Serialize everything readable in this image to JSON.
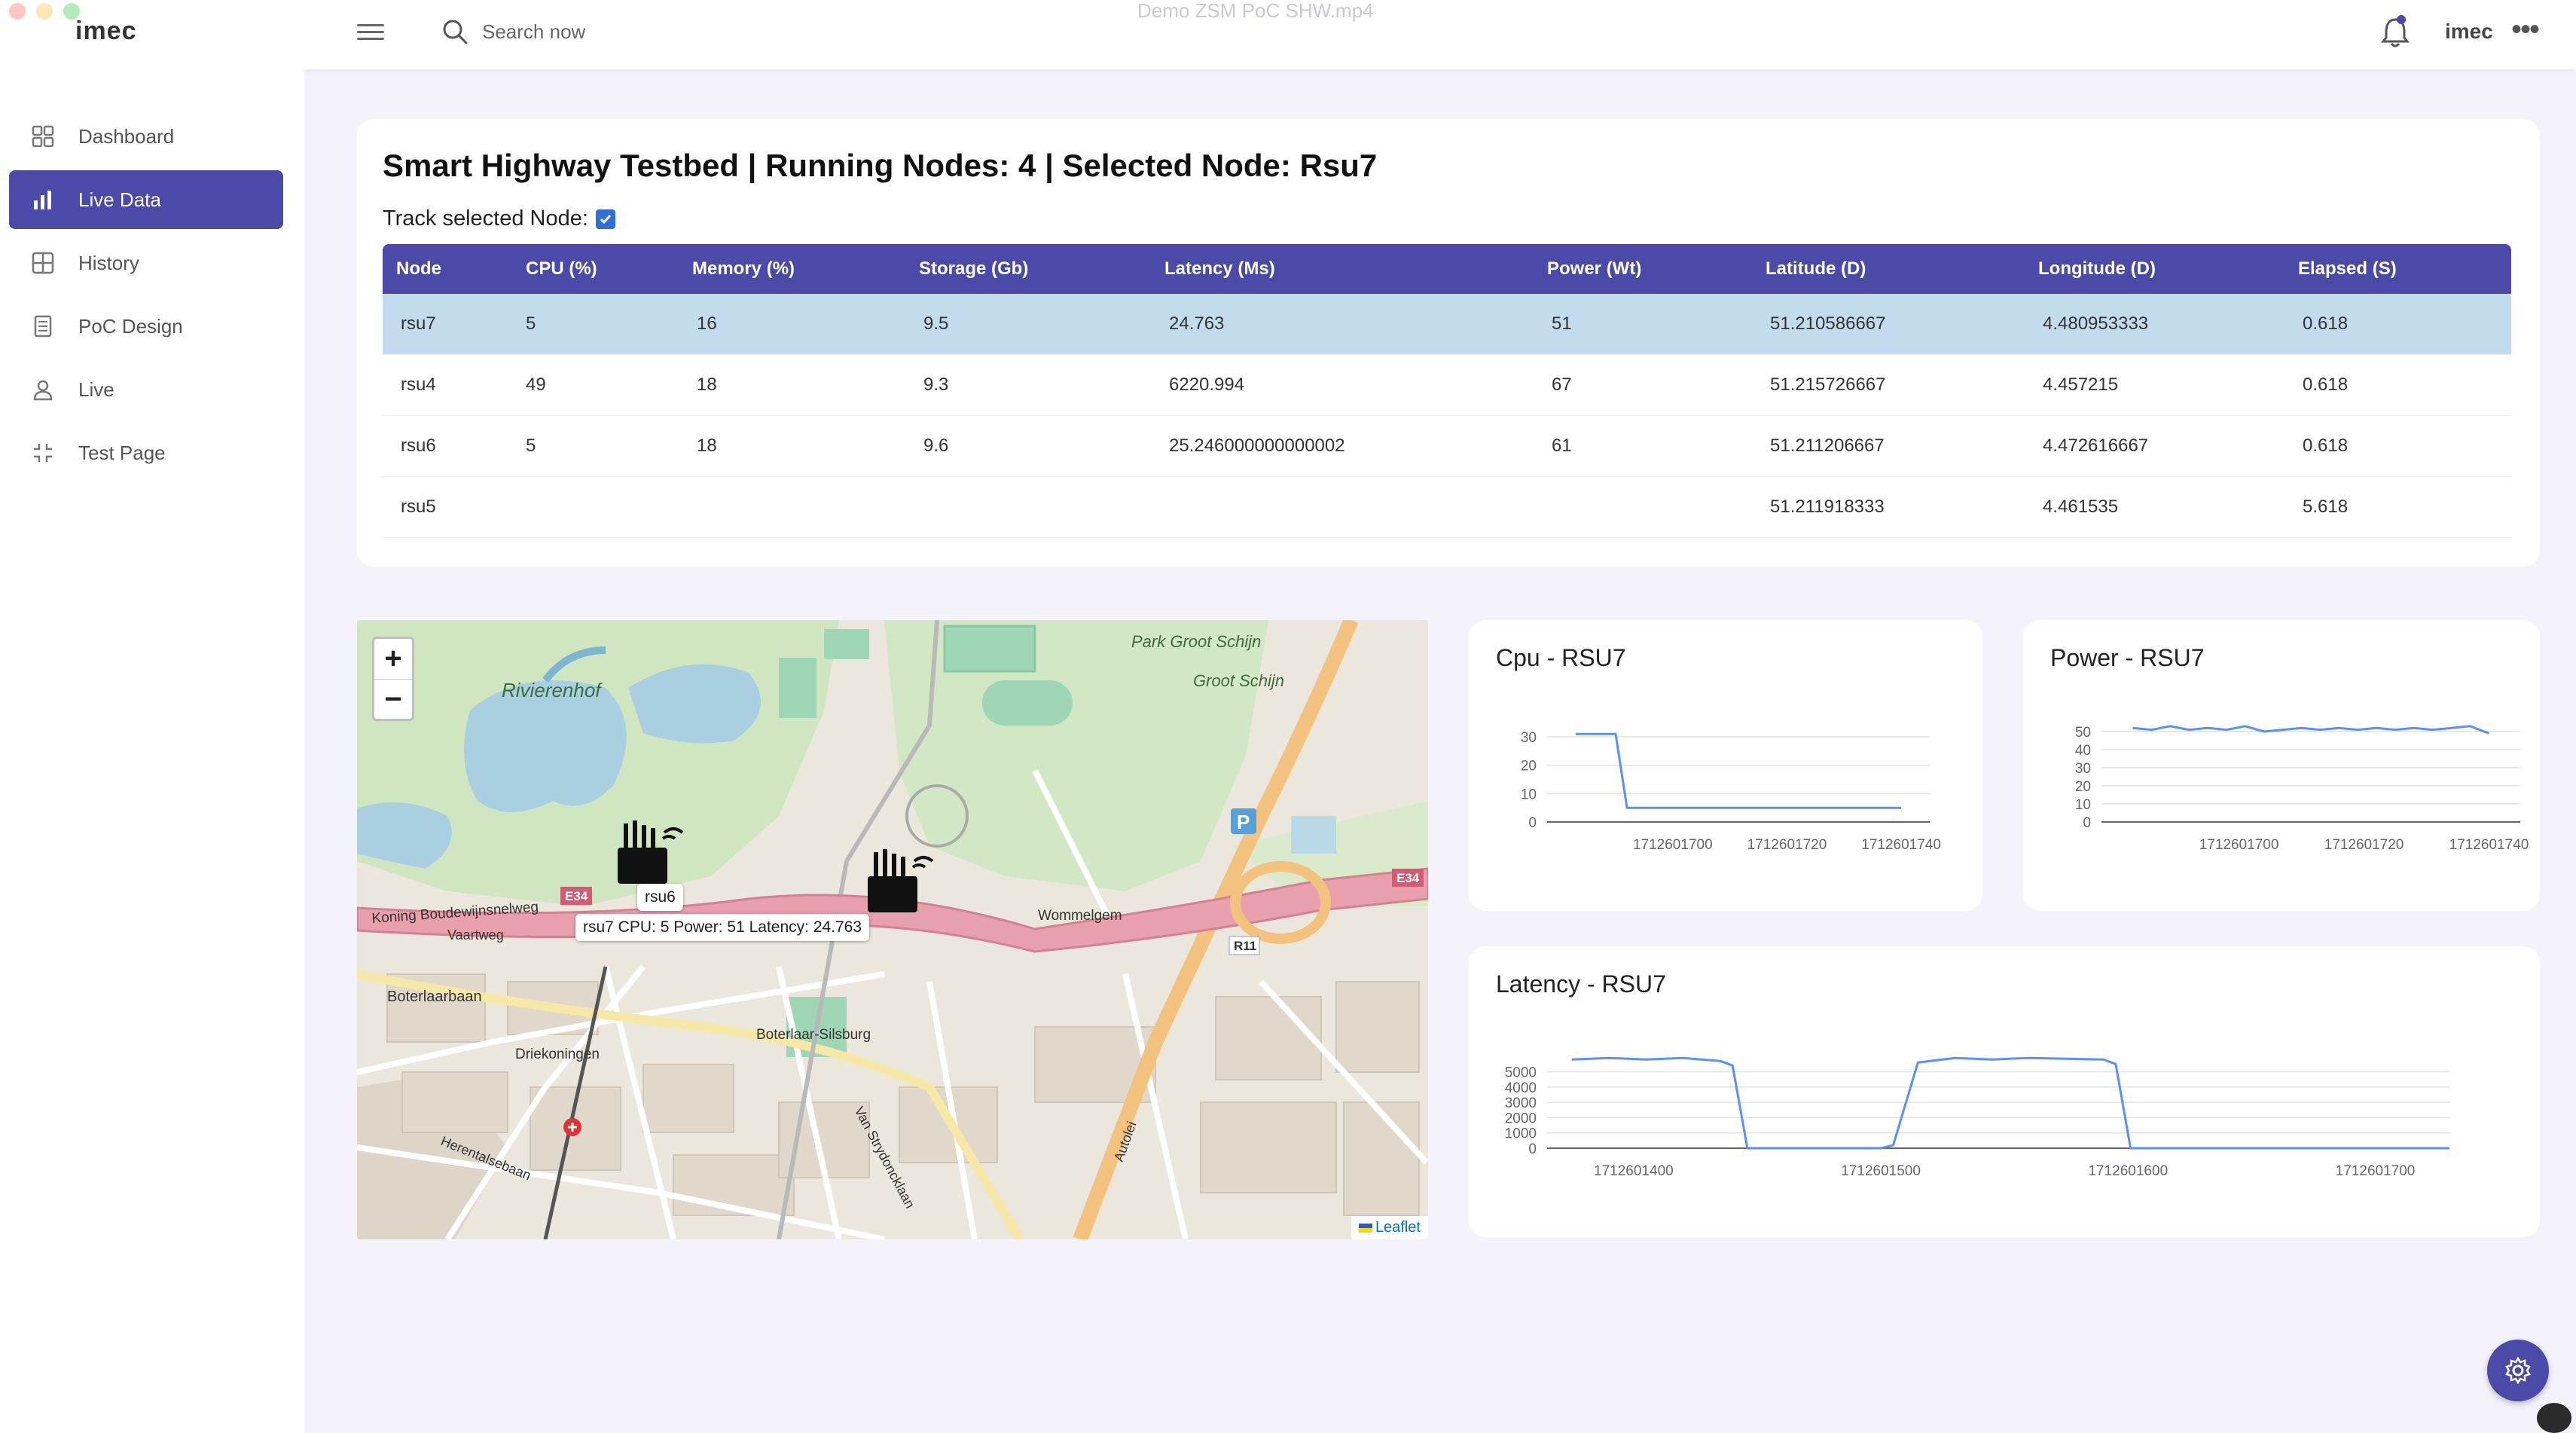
{
  "window": {
    "video_title": "Demo ZSM PoC SHW.mp4"
  },
  "header": {
    "logo": "imec",
    "search_placeholder": "Search now",
    "small_logo": "imec"
  },
  "sidebar": {
    "items": [
      {
        "label": "Dashboard",
        "icon": "dashboard-grid-icon",
        "active": false
      },
      {
        "label": "Live Data",
        "icon": "bar-chart-icon",
        "active": true
      },
      {
        "label": "History",
        "icon": "history-grid-icon",
        "active": false
      },
      {
        "label": "PoC Design",
        "icon": "document-icon",
        "active": false
      },
      {
        "label": "Live",
        "icon": "user-icon",
        "active": false
      },
      {
        "label": "Test Page",
        "icon": "collapse-arrows-icon",
        "active": false
      }
    ]
  },
  "main": {
    "title": "Smart Highway Testbed | Running Nodes: 4 | Selected Node: Rsu7",
    "track_label": "Track selected Node:",
    "track_checked": true,
    "table": {
      "columns": [
        "Node",
        "CPU (%)",
        "Memory (%)",
        "Storage (Gb)",
        "Latency (Ms)",
        "Power (Wt)",
        "Latitude (D)",
        "Longitude (D)",
        "Elapsed (S)"
      ],
      "rows": [
        [
          "rsu7",
          "5",
          "16",
          "9.5",
          "24.763",
          "51",
          "51.210586667",
          "4.480953333",
          "0.618"
        ],
        [
          "rsu4",
          "49",
          "18",
          "9.3",
          "6220.994",
          "67",
          "51.215726667",
          "4.457215",
          "0.618"
        ],
        [
          "rsu6",
          "5",
          "18",
          "9.6",
          "25.246000000000002",
          "61",
          "51.211206667",
          "4.472616667",
          "0.618"
        ],
        [
          "rsu5",
          "",
          "",
          "",
          "",
          "",
          "51.211918333",
          "4.461535",
          "5.618"
        ]
      ],
      "selected_row": 0
    }
  },
  "map": {
    "zoom_in": "+",
    "zoom_out": "−",
    "marker_label": "rsu6",
    "tooltip": "rsu7 CPU: 5 Power: 51 Latency: 24.763",
    "attribution": "Leaflet",
    "place_labels": {
      "rivierenhof": "Rivierenhof",
      "park_groot_schijn": "Park Groot Schijn",
      "groot_schijn": "Groot Schijn",
      "koning": "Koning Boudewijnsnelweg",
      "wommelgem": "Wommelgem",
      "boterlaarbaan": "Boterlaarbaan",
      "driekoningen": "Driekoningen",
      "boterlaar_silsburg": "Boterlaar-Silsburg",
      "e34_left": "E34",
      "e34_right": "E34",
      "r11": "R11",
      "vaartweg": "Vaartweg",
      "van_strydoncklaan": "Van Strydoncklaan",
      "herentalsebaan": "Herentalsebaan",
      "autoleg": "Autolei"
    }
  },
  "chart_data": [
    {
      "type": "line",
      "title": "Cpu - RSU7",
      "x": [
        1712601683,
        1712601690,
        1712601692,
        1712601700,
        1712601710,
        1712601720,
        1712601730,
        1712601740
      ],
      "y": [
        31,
        31,
        5,
        5,
        5,
        5,
        5,
        5
      ],
      "x_ticks": [
        "1712601700",
        "1712601720",
        "1712601740"
      ],
      "y_ticks": [
        0,
        10,
        20,
        30
      ],
      "ylim": [
        0,
        34
      ],
      "color": "#5b8ff9"
    },
    {
      "type": "line",
      "title": "Power - RSU7",
      "x": [
        1712601683,
        1712601686,
        1712601689,
        1712601692,
        1712601695,
        1712601698,
        1712601701,
        1712601704,
        1712601707,
        1712601710,
        1712601713,
        1712601716,
        1712601719,
        1712601722,
        1712601725,
        1712601728,
        1712601731,
        1712601734,
        1712601737,
        1712601740
      ],
      "y": [
        52,
        51,
        53,
        51,
        52,
        51,
        53,
        50,
        51,
        52,
        51,
        52,
        51,
        52,
        51,
        52,
        51,
        52,
        53,
        49
      ],
      "x_ticks": [
        "1712601700",
        "1712601720",
        "1712601740"
      ],
      "y_ticks": [
        0,
        10,
        20,
        30,
        40,
        50
      ],
      "ylim": [
        0,
        55
      ],
      "color": "#5b8ff9"
    },
    {
      "type": "line",
      "title": "Latency - RSU7",
      "x": [
        1712601375,
        1712601390,
        1712601405,
        1712601420,
        1712601435,
        1712601440,
        1712601446,
        1712601500,
        1712601505,
        1712601515,
        1712601530,
        1712601545,
        1712601560,
        1712601590,
        1712601595,
        1712601601,
        1712601700,
        1712601730
      ],
      "y": [
        5800,
        5900,
        5800,
        5900,
        5700,
        5400,
        0,
        0,
        200,
        5600,
        5900,
        5800,
        5900,
        5800,
        5500,
        0,
        0,
        0
      ],
      "x_ticks": [
        "1712601400",
        "1712601500",
        "1712601600",
        "1712601700"
      ],
      "y_ticks": [
        0,
        1000,
        2000,
        3000,
        4000,
        5000
      ],
      "ylim": [
        0,
        6500
      ],
      "color": "#5b8ff9"
    }
  ]
}
